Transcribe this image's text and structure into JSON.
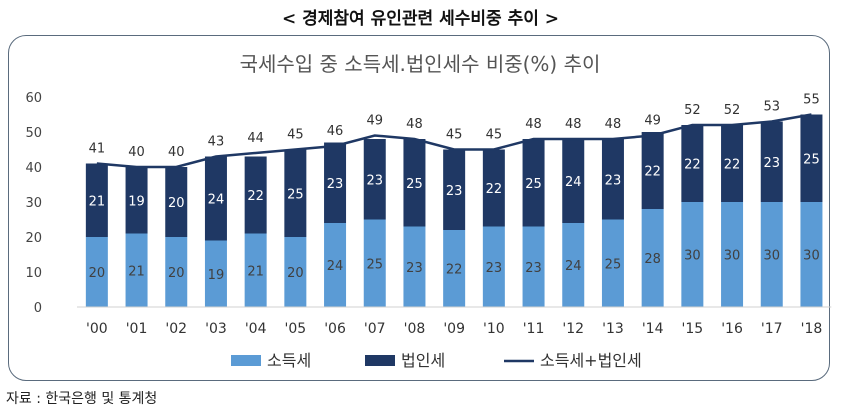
{
  "header": {
    "title": "< 경제참여 유인관련 세수비중 추이  >"
  },
  "footer": {
    "source": "자료 : 한국은행 및 통계청"
  },
  "colors": {
    "income_tax": "#5b9bd5",
    "corporate_tax": "#1f3864",
    "total_line": "#1f3864"
  },
  "chart_data": {
    "type": "bar",
    "stacked": true,
    "title": "국세수입 중 소득세.법인세수 비중(%) 추이",
    "categories": [
      "'00",
      "'01",
      "'02",
      "'03",
      "'04",
      "'05",
      "'06",
      "'07",
      "'08",
      "'09",
      "'10",
      "'11",
      "'12",
      "'13",
      "'14",
      "'15",
      "'16",
      "'17",
      "'18"
    ],
    "series": [
      {
        "name": "소득세",
        "type": "bar",
        "values": [
          20,
          21,
          20,
          19,
          21,
          20,
          24,
          25,
          23,
          22,
          23,
          23,
          24,
          25,
          28,
          30,
          30,
          30,
          30
        ]
      },
      {
        "name": "법인세",
        "type": "bar",
        "values": [
          21,
          19,
          20,
          24,
          22,
          25,
          23,
          23,
          25,
          23,
          22,
          25,
          24,
          23,
          22,
          22,
          22,
          23,
          25
        ]
      },
      {
        "name": "소득세+법인세",
        "type": "line",
        "values": [
          41,
          40,
          40,
          43,
          44,
          45,
          46,
          49,
          48,
          45,
          45,
          48,
          48,
          48,
          49,
          52,
          52,
          53,
          55
        ]
      }
    ],
    "yticks": [
      "0",
      "10",
      "20",
      "30",
      "40",
      "50",
      "60"
    ],
    "ylim": [
      0,
      60
    ],
    "xlabel": "",
    "ylabel": "",
    "legend": "bottom"
  }
}
